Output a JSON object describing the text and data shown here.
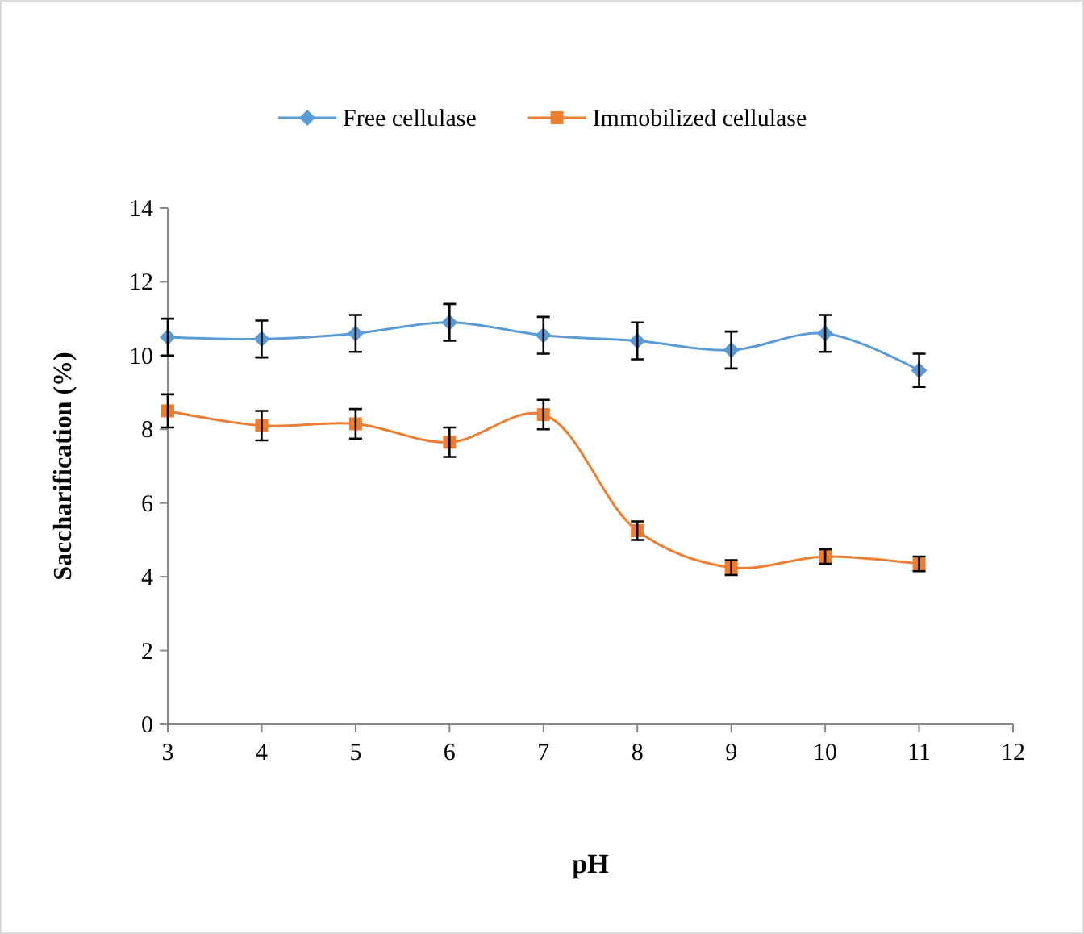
{
  "chart_data": {
    "type": "line",
    "xlabel": "pH",
    "ylabel": "Saccharification (%)",
    "x": [
      3,
      4,
      5,
      6,
      7,
      8,
      9,
      10,
      11
    ],
    "xlim": [
      3,
      12
    ],
    "xticks": [
      3,
      4,
      5,
      6,
      7,
      8,
      9,
      10,
      11,
      12
    ],
    "ylim": [
      0,
      14
    ],
    "yticks": [
      0,
      2,
      4,
      6,
      8,
      10,
      12,
      14
    ],
    "grid": false,
    "legend": "top",
    "series": [
      {
        "name": "Free cellulase",
        "color": "#5b9bd5",
        "marker": "diamond",
        "values": [
          10.5,
          10.45,
          10.6,
          10.9,
          10.55,
          10.4,
          10.15,
          10.6,
          9.6
        ],
        "errors": [
          0.5,
          0.5,
          0.5,
          0.5,
          0.5,
          0.5,
          0.5,
          0.5,
          0.45
        ]
      },
      {
        "name": "Immobilized cellulase",
        "color": "#ed7d31",
        "marker": "square",
        "values": [
          8.5,
          8.1,
          8.15,
          7.65,
          8.4,
          5.25,
          4.25,
          4.55,
          4.35
        ],
        "errors": [
          0.45,
          0.4,
          0.4,
          0.4,
          0.4,
          0.25,
          0.2,
          0.2,
          0.2
        ]
      }
    ]
  }
}
